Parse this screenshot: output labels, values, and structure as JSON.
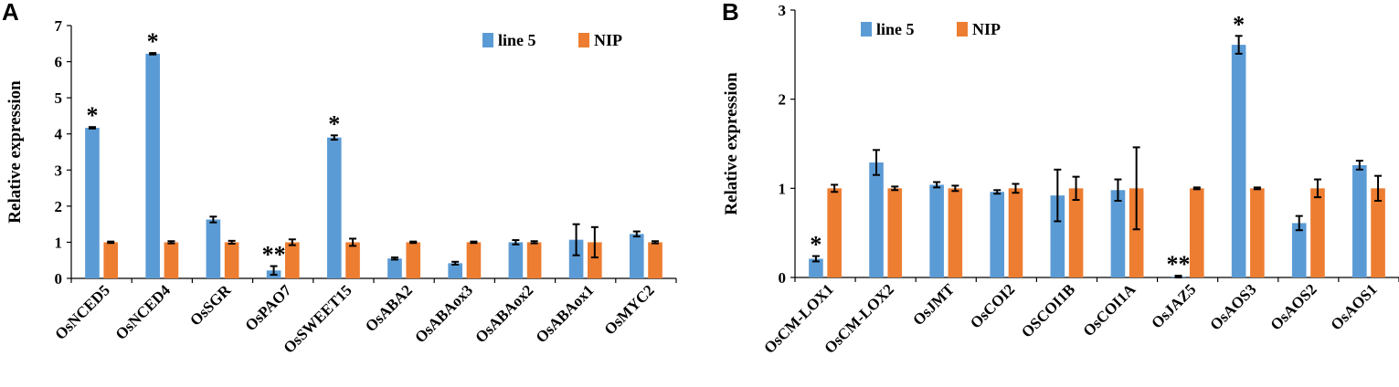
{
  "colors": {
    "line5": "#5b9bd5",
    "nip": "#ed7d31",
    "axis": "#000000"
  },
  "chart_data": [
    {
      "type": "bar",
      "panel_label": "A",
      "ylabel": "Relative expression",
      "ylim": [
        0,
        7
      ],
      "yticks": [
        "0",
        "1",
        "2",
        "3",
        "4",
        "5",
        "6",
        "7"
      ],
      "legend": [
        "line 5",
        "NIP"
      ],
      "legend_position": "top-right",
      "categories": [
        "OsNCED5",
        "OsNCED4",
        "OsSGR",
        "OsPAO7",
        "OsSWEET15",
        "OsABA2",
        "OsABAox3",
        "OsABAox2",
        "OsABAox1",
        "OsMYC2"
      ],
      "series": [
        {
          "name": "line 5",
          "values": [
            4.17,
            6.22,
            1.63,
            0.22,
            3.9,
            0.55,
            0.42,
            1.0,
            1.07,
            1.23
          ],
          "errors": [
            0.02,
            0.02,
            0.08,
            0.12,
            0.06,
            0.03,
            0.04,
            0.06,
            0.43,
            0.07
          ]
        },
        {
          "name": "NIP",
          "values": [
            1.0,
            1.0,
            1.0,
            1.0,
            1.0,
            1.0,
            1.0,
            1.0,
            1.0,
            1.0
          ],
          "errors": [
            0.02,
            0.03,
            0.04,
            0.08,
            0.1,
            0.02,
            0.02,
            0.03,
            0.42,
            0.03
          ]
        }
      ],
      "annotations": [
        "*",
        "*",
        "",
        "**",
        "*",
        "",
        "",
        "",
        "",
        ""
      ]
    },
    {
      "type": "bar",
      "panel_label": "B",
      "ylabel": "Relative expression",
      "ylim": [
        0,
        3
      ],
      "yticks": [
        "0",
        "1",
        "2",
        "3"
      ],
      "legend": [
        "line 5",
        "NIP"
      ],
      "legend_position": "top-left",
      "categories": [
        "OsCM-LOX1",
        "OsCM-LOX2",
        "OsJMT",
        "OsCOI2",
        "OSCOI1B",
        "OsCOI1A",
        "OsJAZ5",
        "OsAOS3",
        "OsAOS2",
        "OsAOS1"
      ],
      "series": [
        {
          "name": "line 5",
          "values": [
            0.21,
            1.29,
            1.04,
            0.96,
            0.92,
            0.98,
            0.01,
            2.61,
            0.61,
            1.26
          ],
          "errors": [
            0.03,
            0.14,
            0.03,
            0.02,
            0.29,
            0.12,
            0.01,
            0.1,
            0.08,
            0.05
          ]
        },
        {
          "name": "NIP",
          "values": [
            1.0,
            1.0,
            1.0,
            1.0,
            1.0,
            1.0,
            1.0,
            1.0,
            1.0,
            1.0
          ],
          "errors": [
            0.04,
            0.02,
            0.03,
            0.05,
            0.13,
            0.46,
            0.01,
            0.01,
            0.1,
            0.14
          ]
        }
      ],
      "annotations": [
        "*",
        "",
        "",
        "",
        "",
        "",
        "**",
        "*",
        "",
        ""
      ]
    }
  ]
}
